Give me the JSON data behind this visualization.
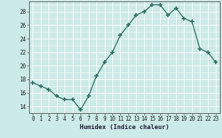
{
  "x": [
    0,
    1,
    2,
    3,
    4,
    5,
    6,
    7,
    8,
    9,
    10,
    11,
    12,
    13,
    14,
    15,
    16,
    17,
    18,
    19,
    20,
    21,
    22,
    23
  ],
  "y": [
    17.5,
    17.0,
    16.5,
    15.5,
    15.0,
    15.0,
    13.5,
    15.5,
    18.5,
    20.5,
    22.0,
    24.5,
    26.0,
    27.5,
    28.0,
    29.0,
    29.0,
    27.5,
    28.5,
    27.0,
    26.5,
    22.5,
    22.0,
    20.5
  ],
  "xlabel": "Humidex (Indice chaleur)",
  "line_color": "#2a6b5e",
  "marker": "+",
  "marker_size": 4,
  "marker_lw": 1.2,
  "line_width": 1.0,
  "bg_color": "#cceae8",
  "grid_color": "#ffffff",
  "grid_lw": 0.7,
  "axis_color": "#555555",
  "ylim": [
    13.0,
    29.5
  ],
  "xlim": [
    -0.5,
    23.5
  ],
  "yticks": [
    14,
    16,
    18,
    20,
    22,
    24,
    26,
    28
  ],
  "xticks": [
    0,
    1,
    2,
    3,
    4,
    5,
    6,
    7,
    8,
    9,
    10,
    11,
    12,
    13,
    14,
    15,
    16,
    17,
    18,
    19,
    20,
    21,
    22,
    23
  ],
  "xlabel_fontsize": 6.5,
  "tick_fontsize": 5.5
}
